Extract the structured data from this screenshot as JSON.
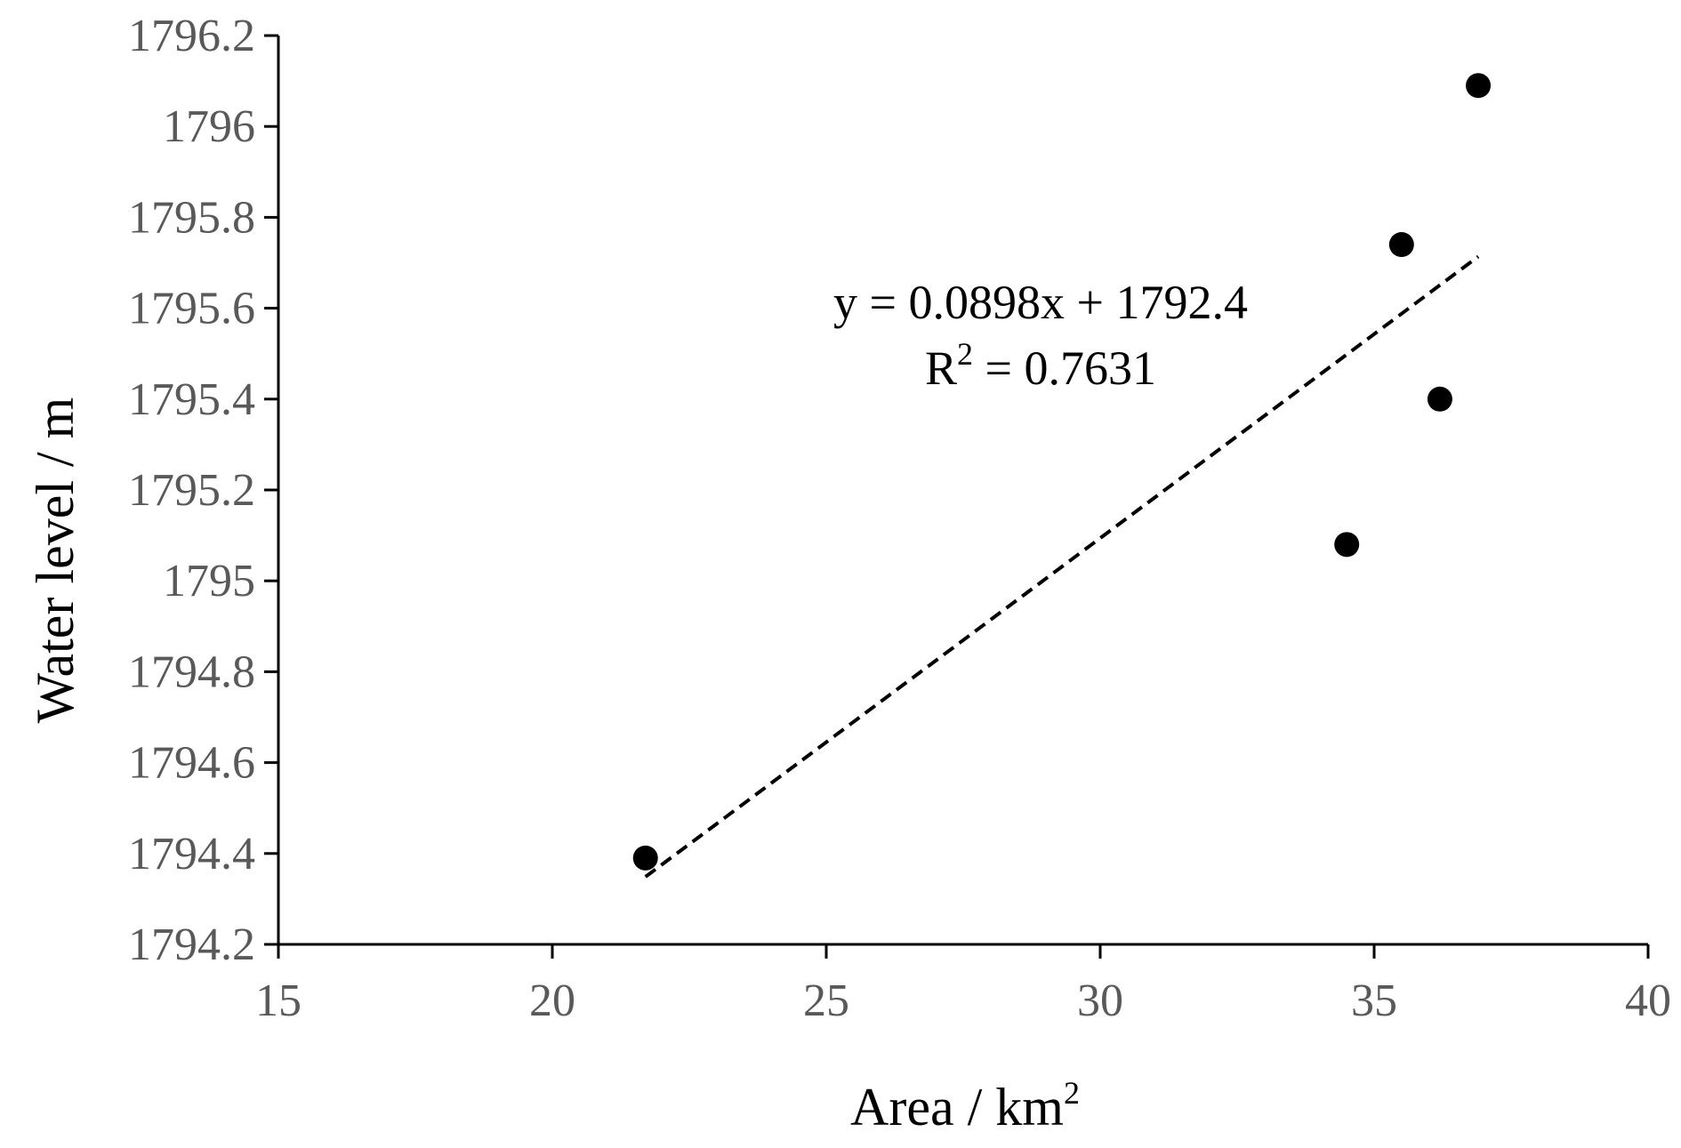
{
  "chart_data": {
    "type": "scatter",
    "title": "",
    "xlabel": {
      "base": "Area / km",
      "sup": "2"
    },
    "ylabel": "Water level / m",
    "xlim": [
      15,
      40
    ],
    "ylim": [
      1794.2,
      1796.2
    ],
    "x_ticks": [
      {
        "value": 15,
        "label": "15"
      },
      {
        "value": 20,
        "label": "20"
      },
      {
        "value": 25,
        "label": "25"
      },
      {
        "value": 30,
        "label": "30"
      },
      {
        "value": 35,
        "label": "35"
      },
      {
        "value": 40,
        "label": "40"
      }
    ],
    "y_ticks": [
      {
        "value": 1794.2,
        "label": "1794.2"
      },
      {
        "value": 1794.4,
        "label": "1794.4"
      },
      {
        "value": 1794.6,
        "label": "1794.6"
      },
      {
        "value": 1794.8,
        "label": "1794.8"
      },
      {
        "value": 1795.0,
        "label": "1795"
      },
      {
        "value": 1795.2,
        "label": "1795.2"
      },
      {
        "value": 1795.4,
        "label": "1795.4"
      },
      {
        "value": 1795.6,
        "label": "1795.6"
      },
      {
        "value": 1795.8,
        "label": "1795.8"
      },
      {
        "value": 1796.0,
        "label": "1796"
      },
      {
        "value": 1796.2,
        "label": "1796.2"
      }
    ],
    "points": [
      {
        "x": 21.7,
        "y": 1794.39
      },
      {
        "x": 34.5,
        "y": 1795.08
      },
      {
        "x": 35.5,
        "y": 1795.74
      },
      {
        "x": 36.2,
        "y": 1795.4
      },
      {
        "x": 36.9,
        "y": 1796.09
      }
    ],
    "trendline": {
      "type": "linear",
      "slope": 0.0898,
      "intercept": 1792.4,
      "x_range": [
        21.7,
        36.9
      ],
      "style": "dashed",
      "equation": "y = 0.0898x + 1792.4",
      "r2_label": {
        "base": "R",
        "sup": "2",
        "rest": " = 0.7631"
      }
    },
    "grid": false,
    "legend": "none",
    "colors": {
      "points": "#000000",
      "axis": "#000000",
      "tick_text": "#595959",
      "trendline": "#000000"
    }
  }
}
